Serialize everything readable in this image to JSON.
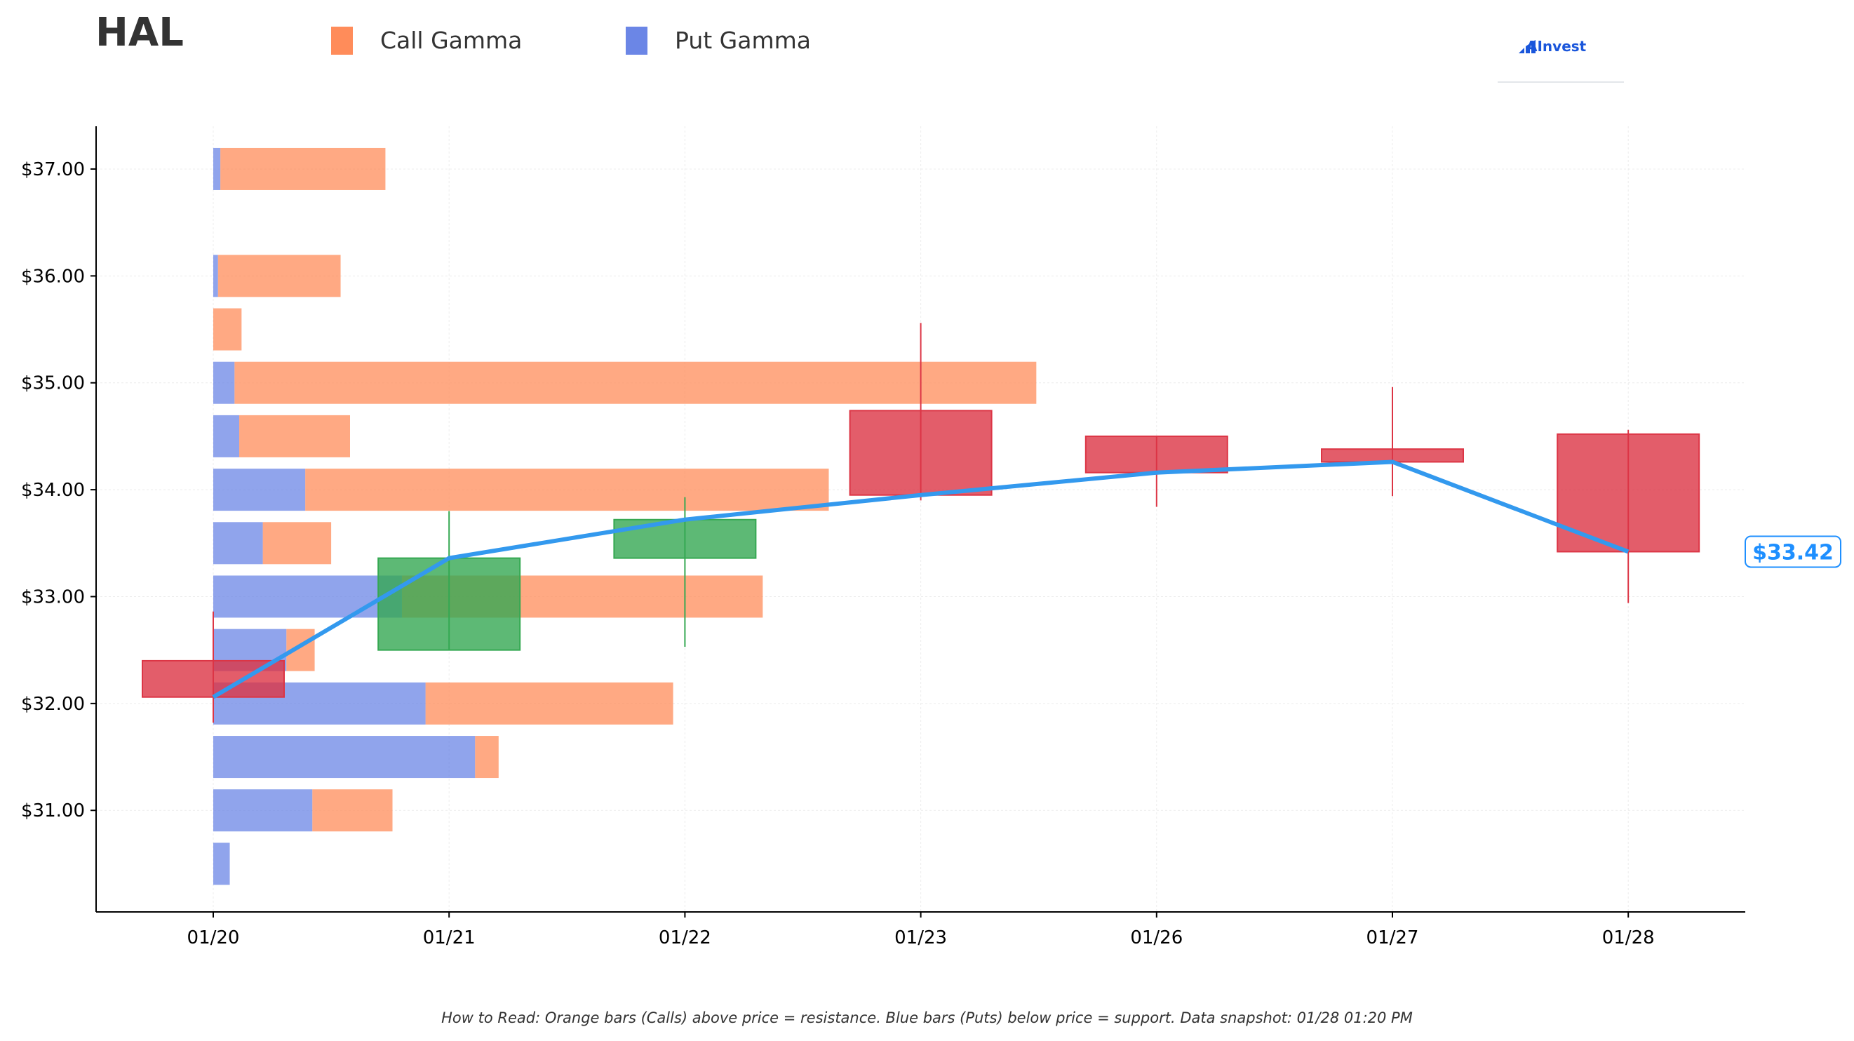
{
  "ticker": "HAL",
  "legend": {
    "call_label": "Call Gamma",
    "put_label": "Put Gamma"
  },
  "logo_text": "AInvest",
  "footnote": "How to Read: Orange bars (Calls) above price = resistance. Blue bars (Puts) below price = support. Data snapshot: 01/28 01:20 PM",
  "colors": {
    "call": "#ff8c5a",
    "put": "#6b86e6",
    "up": "#35a852",
    "down": "#dc3545",
    "line": "#3399ee",
    "price_label": "#1e8fff"
  },
  "chart_data": {
    "type": "candlestick-with-gamma-bars",
    "title": "HAL",
    "categories": [
      "01/20",
      "01/21",
      "01/22",
      "01/23",
      "01/26",
      "01/27",
      "01/28"
    ],
    "y_tick_labels": [
      "$31.00",
      "$32.00",
      "$33.00",
      "$34.00",
      "$35.00",
      "$36.00",
      "$37.00"
    ],
    "ylim": [
      30.05,
      37.4
    ],
    "grid": true,
    "gamma_bar_scale": "relative (x-axis date units)",
    "gamma_levels": [
      {
        "strike": 37.0,
        "call": 0.7,
        "put": 0.03
      },
      {
        "strike": 36.0,
        "call": 0.52,
        "put": 0.02
      },
      {
        "strike": 35.5,
        "call": 0.12,
        "put": 0.0
      },
      {
        "strike": 35.0,
        "call": 3.4,
        "put": 0.09
      },
      {
        "strike": 34.5,
        "call": 0.47,
        "put": 0.11
      },
      {
        "strike": 34.0,
        "call": 2.22,
        "put": 0.39
      },
      {
        "strike": 33.5,
        "call": 0.29,
        "put": 0.21
      },
      {
        "strike": 33.0,
        "call": 1.53,
        "put": 0.8
      },
      {
        "strike": 32.5,
        "call": 0.12,
        "put": 0.31
      },
      {
        "strike": 32.0,
        "call": 1.05,
        "put": 0.9
      },
      {
        "strike": 31.5,
        "call": 0.1,
        "put": 1.11
      },
      {
        "strike": 31.0,
        "call": 0.34,
        "put": 0.42
      },
      {
        "strike": 30.5,
        "call": 0.0,
        "put": 0.07
      }
    ],
    "candles": [
      {
        "date": "01/20",
        "open": 32.4,
        "high": 32.86,
        "low": 31.82,
        "close": 32.06
      },
      {
        "date": "01/21",
        "open": 32.5,
        "high": 33.8,
        "low": 32.5,
        "close": 33.36
      },
      {
        "date": "01/22",
        "open": 33.36,
        "high": 33.93,
        "low": 32.53,
        "close": 33.72
      },
      {
        "date": "01/23",
        "open": 34.74,
        "high": 35.56,
        "low": 33.9,
        "close": 33.95
      },
      {
        "date": "01/26",
        "open": 34.5,
        "high": 34.5,
        "low": 33.84,
        "close": 34.16
      },
      {
        "date": "01/27",
        "open": 34.38,
        "high": 34.96,
        "low": 33.94,
        "close": 34.26
      },
      {
        "date": "01/28",
        "open": 34.52,
        "high": 34.56,
        "low": 32.94,
        "close": 33.42
      }
    ],
    "close_line": [
      32.06,
      33.36,
      33.72,
      33.95,
      34.16,
      34.26,
      33.42
    ],
    "last_price_label": "$33.42"
  }
}
